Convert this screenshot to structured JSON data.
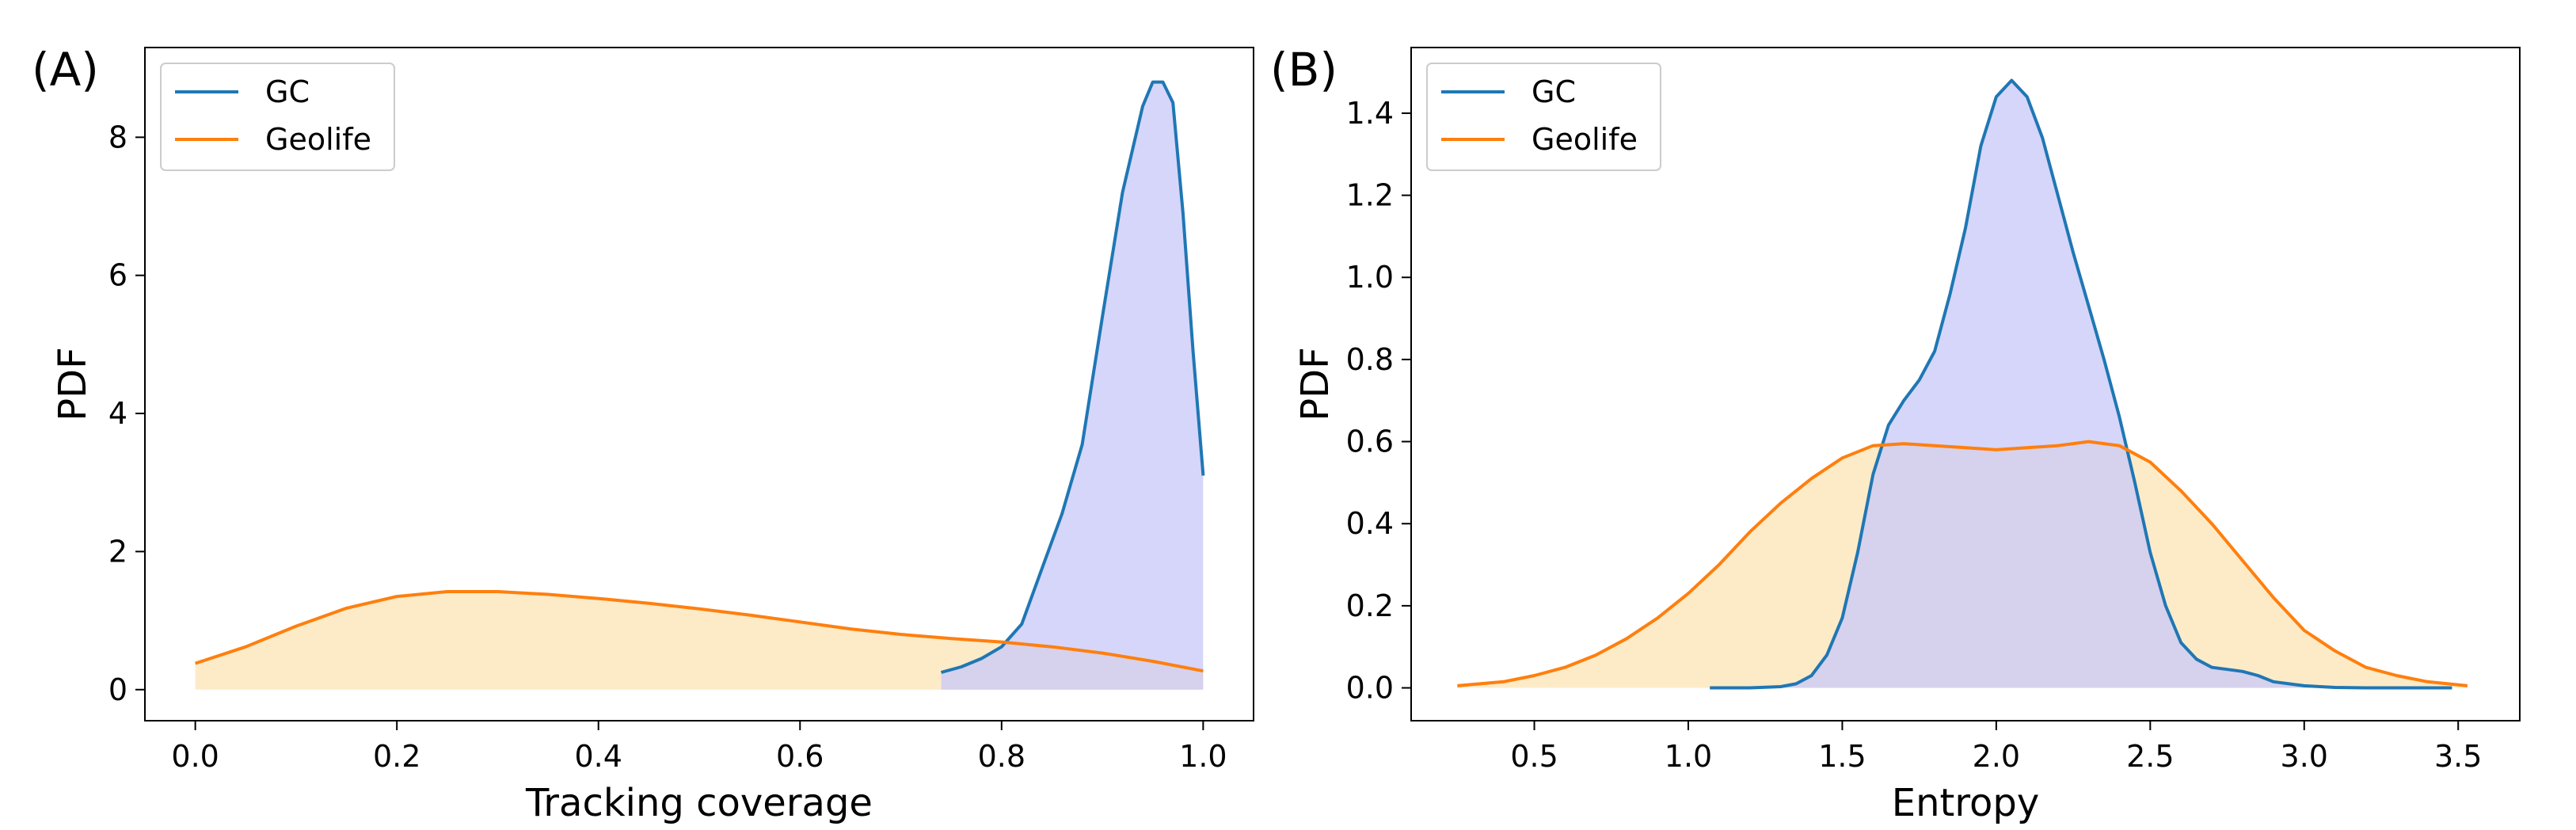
{
  "chart_data": [
    {
      "type": "area",
      "panel_label": "(A)",
      "xlabel": "Tracking coverage",
      "ylabel": "PDF",
      "xlim": [
        -0.05,
        1.05
      ],
      "ylim": [
        -0.45,
        9.3
      ],
      "xticks": [
        0.0,
        0.2,
        0.4,
        0.6,
        0.8,
        1.0
      ],
      "xtick_labels": [
        "0.0",
        "0.2",
        "0.4",
        "0.6",
        "0.8",
        "1.0"
      ],
      "yticks": [
        0,
        2,
        4,
        6,
        8
      ],
      "ytick_labels": [
        "0",
        "2",
        "4",
        "6",
        "8"
      ],
      "legend": {
        "position": "top-left",
        "entries": [
          "GC",
          "Geolife"
        ]
      },
      "grid": false,
      "series": [
        {
          "name": "GC",
          "color": "#1f77b4",
          "fill": "#c8c8f8",
          "x": [
            0.74,
            0.76,
            0.78,
            0.8,
            0.82,
            0.84,
            0.86,
            0.88,
            0.9,
            0.92,
            0.94,
            0.95,
            0.96,
            0.97,
            0.98,
            0.99,
            1.0
          ],
          "y": [
            0.25,
            0.33,
            0.45,
            0.62,
            0.95,
            1.75,
            2.55,
            3.55,
            5.4,
            7.2,
            8.45,
            8.8,
            8.8,
            8.5,
            6.9,
            4.9,
            3.1
          ]
        },
        {
          "name": "Geolife",
          "color": "#ff7f0e",
          "fill": "#fdebc8",
          "x": [
            0.0,
            0.05,
            0.1,
            0.15,
            0.2,
            0.25,
            0.3,
            0.35,
            0.4,
            0.45,
            0.5,
            0.55,
            0.6,
            0.65,
            0.7,
            0.75,
            0.8,
            0.85,
            0.9,
            0.95,
            1.0
          ],
          "y": [
            0.38,
            0.62,
            0.92,
            1.18,
            1.35,
            1.42,
            1.42,
            1.38,
            1.32,
            1.25,
            1.17,
            1.08,
            0.98,
            0.88,
            0.8,
            0.74,
            0.69,
            0.62,
            0.53,
            0.41,
            0.27
          ]
        }
      ]
    },
    {
      "type": "area",
      "panel_label": "(B)",
      "xlabel": "Entropy",
      "ylabel": "PDF",
      "xlim": [
        0.1,
        3.7
      ],
      "ylim": [
        -0.08,
        1.56
      ],
      "xticks": [
        0.5,
        1.0,
        1.5,
        2.0,
        2.5,
        3.0,
        3.5
      ],
      "xtick_labels": [
        "0.5",
        "1.0",
        "1.5",
        "2.0",
        "2.5",
        "3.0",
        "3.5"
      ],
      "yticks": [
        0.0,
        0.2,
        0.4,
        0.6,
        0.8,
        1.0,
        1.2,
        1.4
      ],
      "ytick_labels": [
        "0.0",
        "0.2",
        "0.4",
        "0.6",
        "0.8",
        "1.0",
        "1.2",
        "1.4"
      ],
      "legend": {
        "position": "top-left",
        "entries": [
          "GC",
          "Geolife"
        ]
      },
      "grid": false,
      "series": [
        {
          "name": "GC",
          "color": "#1f77b4",
          "fill": "#c8c8f8",
          "x": [
            1.07,
            1.2,
            1.3,
            1.35,
            1.4,
            1.45,
            1.5,
            1.55,
            1.6,
            1.65,
            1.7,
            1.75,
            1.8,
            1.85,
            1.9,
            1.95,
            2.0,
            2.05,
            2.1,
            2.15,
            2.2,
            2.25,
            2.3,
            2.35,
            2.4,
            2.45,
            2.5,
            2.55,
            2.6,
            2.65,
            2.7,
            2.75,
            2.8,
            2.85,
            2.9,
            3.0,
            3.1,
            3.2,
            3.3,
            3.48
          ],
          "y": [
            0.0,
            0.0,
            0.003,
            0.01,
            0.03,
            0.08,
            0.17,
            0.33,
            0.52,
            0.64,
            0.7,
            0.75,
            0.82,
            0.96,
            1.12,
            1.32,
            1.44,
            1.48,
            1.44,
            1.34,
            1.2,
            1.06,
            0.93,
            0.8,
            0.66,
            0.5,
            0.33,
            0.2,
            0.11,
            0.07,
            0.05,
            0.045,
            0.04,
            0.03,
            0.015,
            0.005,
            0.001,
            0.0,
            0.0,
            0.0
          ],
          "y_note": ""
        },
        {
          "name": "Geolife",
          "color": "#ff7f0e",
          "fill": "#fdebc8",
          "x": [
            0.25,
            0.4,
            0.5,
            0.6,
            0.7,
            0.8,
            0.9,
            1.0,
            1.1,
            1.2,
            1.3,
            1.4,
            1.5,
            1.6,
            1.7,
            1.8,
            1.9,
            2.0,
            2.1,
            2.2,
            2.3,
            2.4,
            2.5,
            2.6,
            2.7,
            2.8,
            2.9,
            3.0,
            3.1,
            3.2,
            3.3,
            3.4,
            3.53
          ],
          "y": [
            0.005,
            0.015,
            0.03,
            0.05,
            0.08,
            0.12,
            0.17,
            0.23,
            0.3,
            0.38,
            0.45,
            0.51,
            0.56,
            0.59,
            0.595,
            0.59,
            0.585,
            0.58,
            0.585,
            0.59,
            0.6,
            0.59,
            0.55,
            0.48,
            0.4,
            0.31,
            0.22,
            0.14,
            0.09,
            0.05,
            0.03,
            0.015,
            0.005
          ]
        }
      ]
    }
  ]
}
